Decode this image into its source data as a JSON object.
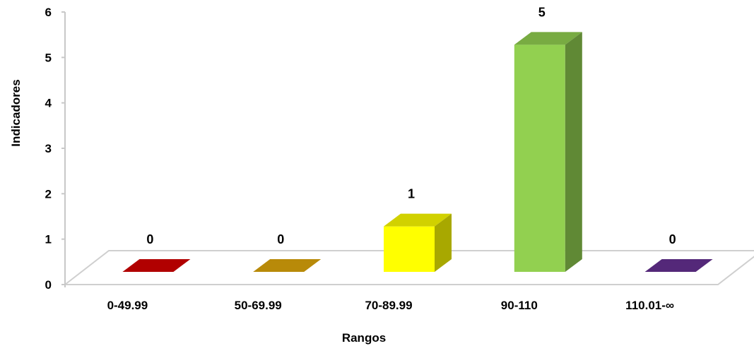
{
  "chart_data": {
    "type": "bar",
    "categories": [
      "0-49.99",
      "50-69.99",
      "70-89.99",
      "90-110",
      "110.01-∞"
    ],
    "values": [
      0,
      0,
      1,
      5,
      0
    ],
    "data_labels": [
      "0",
      "0",
      "1",
      "5",
      "0"
    ],
    "colors": [
      "#c00000",
      "#c8960a",
      "#ffff00",
      "#92d050",
      "#5b2c83"
    ],
    "xlabel": "Rangos",
    "ylabel": "Indicadores",
    "ylim": [
      0,
      6
    ],
    "yticks": [
      "0",
      "1",
      "2",
      "3",
      "4",
      "5",
      "6"
    ],
    "grid": false,
    "legend": "none",
    "style": "3d"
  }
}
